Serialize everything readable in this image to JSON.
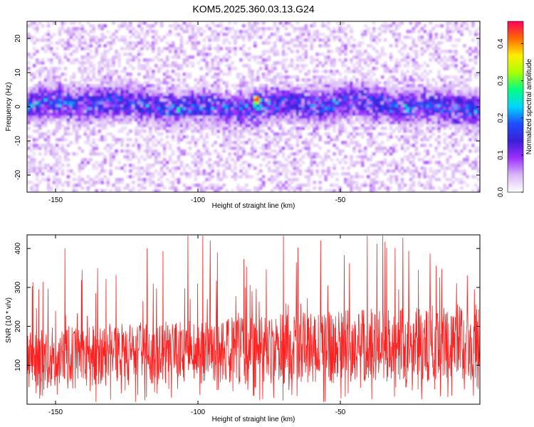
{
  "title": "KOM5.2025.360.03.13.G24",
  "chart_data": [
    {
      "type": "heatmap",
      "xlabel": "Height of straight line (km)",
      "ylabel": "Frequency (Hz)",
      "xlim": [
        -160,
        -1
      ],
      "ylim": [
        -25,
        25
      ],
      "xticks": [
        -150,
        -100,
        -50
      ],
      "xtick_labels": [
        "-150",
        "-100",
        "-50"
      ],
      "yticks": [
        -20,
        -10,
        0,
        10,
        20
      ],
      "ytick_labels": [
        "-20",
        "-10",
        "0",
        "10",
        "20"
      ],
      "colorbar": {
        "label": "Normalized spectral amplitude",
        "range": [
          0,
          0.46
        ],
        "ticks": [
          0,
          0.1,
          0.2,
          0.3,
          0.4
        ],
        "tick_labels": [
          "0.0",
          "0.1",
          "0.2",
          "0.3",
          "0.4"
        ]
      },
      "band_center_freq_hz": 0,
      "band_halfwidth_hz": 4,
      "peak": {
        "height_km": -80,
        "freq_hz": 2,
        "amplitude": 0.42
      }
    },
    {
      "type": "line",
      "xlabel": "Height of straight line (km)",
      "ylabel": "SNR (10 * v/v)",
      "xlim": [
        -160,
        -1
      ],
      "ylim": [
        0,
        435
      ],
      "xticks": [
        -150,
        -100,
        -50
      ],
      "xtick_labels": [
        "-150",
        "-100",
        "-50"
      ],
      "yticks": [
        100,
        200,
        300,
        400
      ],
      "ytick_labels": [
        "100",
        "200",
        "300",
        "400"
      ],
      "series": [
        {
          "name": "SNR",
          "color": "#ff2020",
          "mean_start": 120,
          "mean_end": 160
        }
      ]
    }
  ]
}
